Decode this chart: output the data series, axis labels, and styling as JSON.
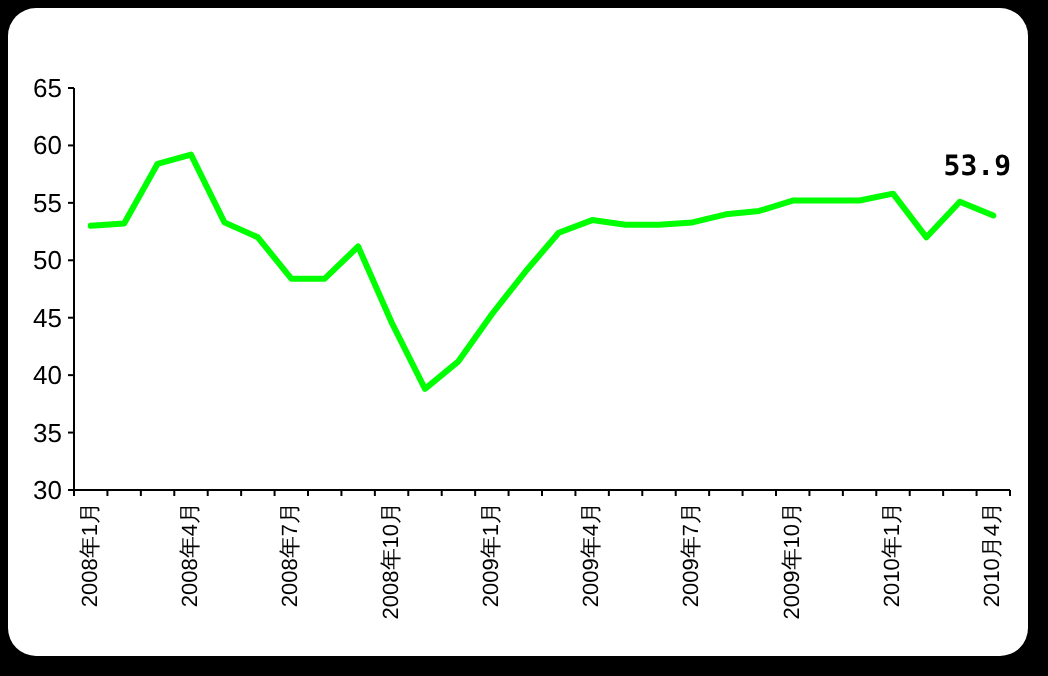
{
  "chart_data": {
    "type": "line",
    "categories": [
      "2008年1月",
      null,
      null,
      "2008年4月",
      null,
      null,
      "2008年7月",
      null,
      null,
      "2008年10月",
      null,
      null,
      "2009年1月",
      null,
      null,
      "2009年4月",
      null,
      null,
      "2009年7月",
      null,
      null,
      "2009年10月",
      null,
      null,
      "2010年1月",
      null,
      null,
      "2010月4月"
    ],
    "values": [
      53.0,
      53.2,
      58.4,
      59.2,
      53.3,
      52.0,
      48.4,
      48.4,
      51.2,
      44.6,
      38.8,
      41.2,
      45.3,
      49.0,
      52.4,
      53.5,
      53.1,
      53.1,
      53.3,
      54.0,
      54.3,
      55.2,
      55.2,
      55.2,
      55.8,
      52.0,
      55.1,
      53.9
    ],
    "color": "#00ff00",
    "ylim": [
      30,
      65
    ],
    "yticks": [
      30,
      35,
      40,
      45,
      50,
      55,
      60,
      65
    ],
    "annotations": [
      {
        "text": "53.9",
        "x": "2010月4月",
        "y": 53.9
      }
    ]
  }
}
